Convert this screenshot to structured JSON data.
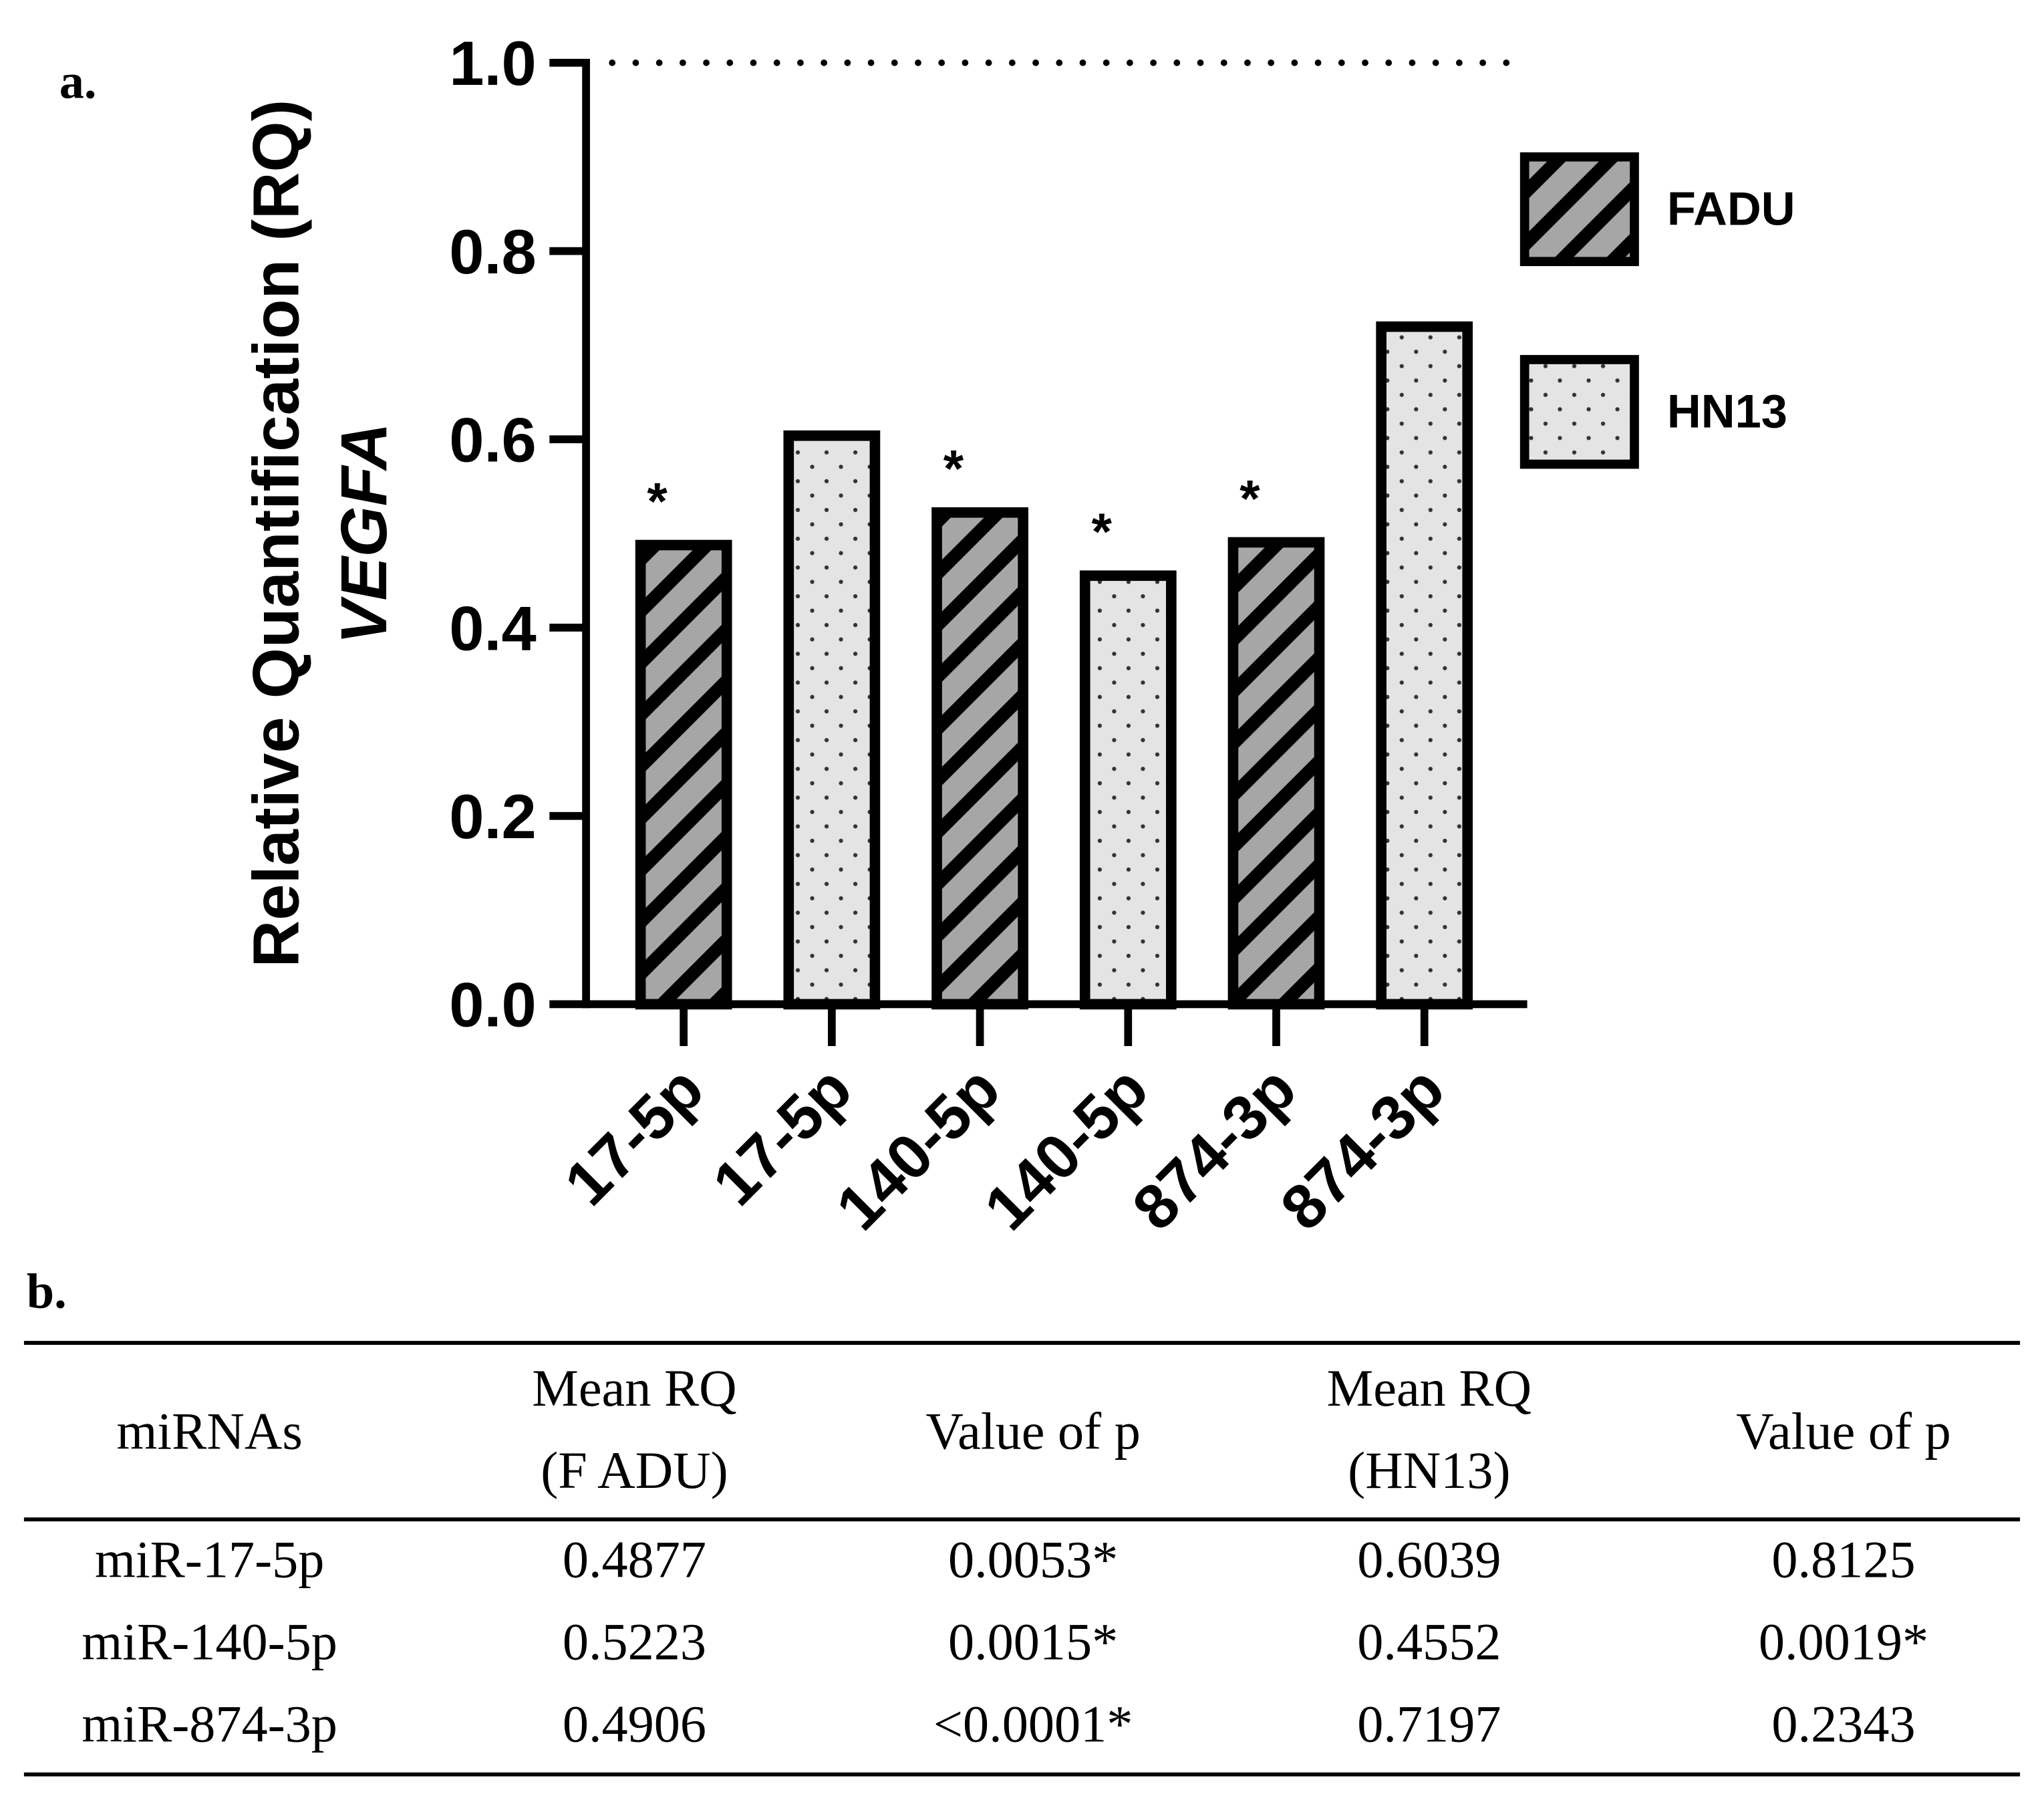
{
  "panel_a_label": "a.",
  "chart_data": {
    "type": "bar",
    "ylabel": "Relative Quantification (RQ)",
    "ylabel_gene": "VEGFA",
    "categories": [
      "17-5p",
      "17-5p",
      "140-5p",
      "140-5p",
      "874-3p",
      "874-3p"
    ],
    "series": [
      {
        "name": "FADU",
        "color": "#a6a6a6",
        "pattern": "stripes",
        "values": [
          0.4877,
          null,
          0.5223,
          null,
          0.4906,
          null
        ]
      },
      {
        "name": "HN13",
        "color": "#e4e4e4",
        "pattern": "dots",
        "values": [
          null,
          0.6039,
          null,
          0.4552,
          null,
          0.7197
        ]
      }
    ],
    "annotations": [
      "*",
      null,
      "*",
      "*",
      "*",
      null
    ],
    "reference_line": 1,
    "ylim": [
      0,
      1
    ],
    "yticks": [
      {
        "value": 0,
        "label": "0.0"
      },
      0.2,
      0.4,
      0.6,
      0.8,
      {
        "value": 1,
        "label": "1.0"
      }
    ],
    "legend": "top-right"
  },
  "panel_b_label": "b.",
  "table": {
    "headers": [
      [
        "miRNAs"
      ],
      [
        "Mean RQ",
        "(F ADU)"
      ],
      [
        "Value of p"
      ],
      [
        "Mean RQ",
        "(HN13)"
      ],
      [
        "Value of p"
      ]
    ],
    "rows": [
      [
        "miR-17-5p",
        "0.4877",
        "0.0053*",
        "0.6039",
        "0.8125"
      ],
      [
        "miR-140-5p",
        "0.5223",
        "0.0015*",
        "0.4552",
        "0.0019*"
      ],
      [
        "miR-874-3p",
        "0.4906",
        "<0.0001*",
        "0.7197",
        "0.2343"
      ]
    ]
  }
}
